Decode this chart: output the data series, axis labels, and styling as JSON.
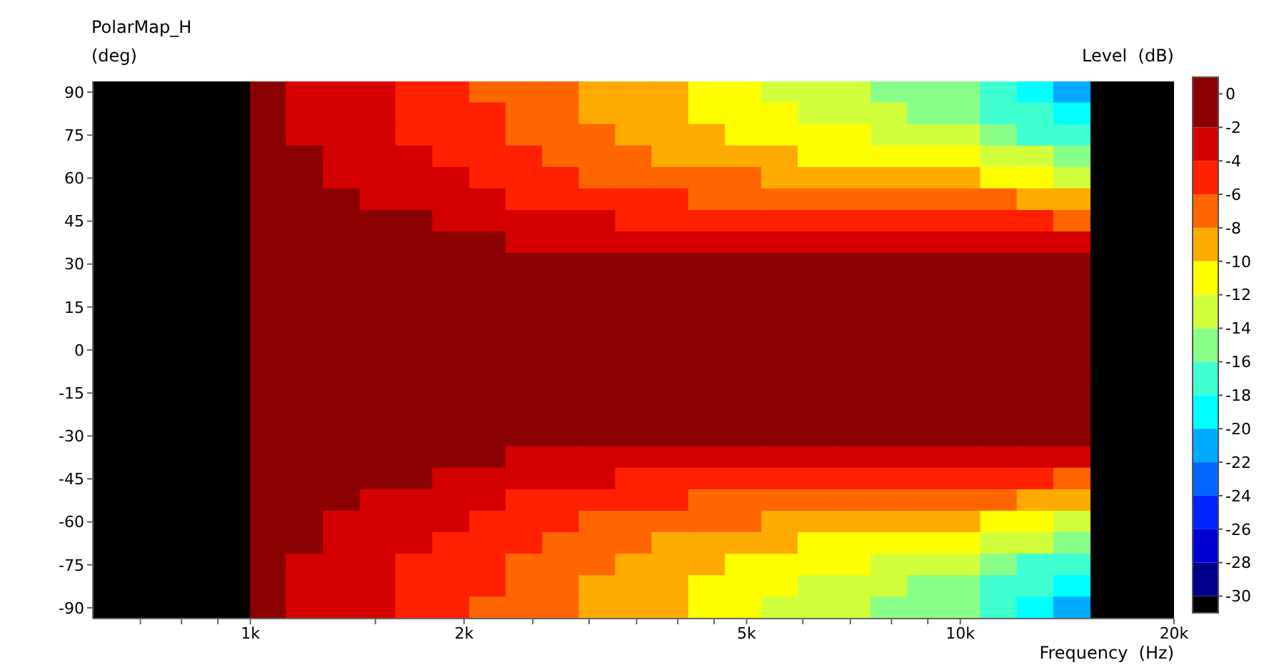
{
  "chart_data": {
    "type": "heatmap",
    "title": "PolarMap_H",
    "ylabel": "(deg)",
    "xlabel": "Frequency  (Hz)",
    "clabel": "Level  (dB)",
    "x": [
      1060,
      1190,
      1350,
      1510,
      1700,
      1920,
      2160,
      2430,
      2740,
      3080,
      3470,
      3900,
      4400,
      4950,
      5570,
      6270,
      7060,
      7940,
      8940,
      10070,
      11330,
      12760,
      14360
    ],
    "xlim": [
      600,
      20000
    ],
    "log": "x",
    "xticks": [
      {
        "value": 700,
        "label": null
      },
      {
        "value": 800,
        "label": null
      },
      {
        "value": 900,
        "label": null
      },
      {
        "value": 1000,
        "label": "1k"
      },
      {
        "value": 1500,
        "label": null
      },
      {
        "value": 2000,
        "label": "2k"
      },
      {
        "value": 2500,
        "label": null
      },
      {
        "value": 3000,
        "label": null
      },
      {
        "value": 3500,
        "label": null
      },
      {
        "value": 4000,
        "label": null
      },
      {
        "value": 4500,
        "label": null
      },
      {
        "value": 5000,
        "label": "5k"
      },
      {
        "value": 6000,
        "label": null
      },
      {
        "value": 7000,
        "label": null
      },
      {
        "value": 8000,
        "label": null
      },
      {
        "value": 9000,
        "label": null
      },
      {
        "value": 10000,
        "label": "10k"
      },
      {
        "value": 20000,
        "label": "20k"
      }
    ],
    "y_categories": [
      "90",
      null,
      "75",
      null,
      "60",
      null,
      "45",
      null,
      "30",
      null,
      "15",
      null,
      "0",
      null,
      "-15",
      null,
      "-30",
      null,
      "-45",
      null,
      "-60",
      null,
      "-75",
      null,
      "-90"
    ],
    "cells": [
      [
        -1,
        -3,
        -3,
        -3,
        -5,
        -5,
        -7,
        -7,
        -7,
        -9,
        -9,
        -9,
        -11,
        -11,
        -13,
        -13,
        -13,
        -15,
        -15,
        -15,
        -17,
        -19,
        -21
      ],
      [
        -1,
        -3,
        -3,
        -3,
        -5,
        -5,
        -5,
        -7,
        -7,
        -9,
        -9,
        -9,
        -11,
        -11,
        -11,
        -13,
        -13,
        -13,
        -15,
        -15,
        -17,
        -17,
        -19
      ],
      [
        -1,
        -3,
        -3,
        -3,
        -5,
        -5,
        -5,
        -7,
        -7,
        -7,
        -9,
        -9,
        -9,
        -11,
        -11,
        -11,
        -11,
        -13,
        -13,
        -13,
        -15,
        -17,
        -17
      ],
      [
        -1,
        -1,
        -3,
        -3,
        -3,
        -5,
        -5,
        -5,
        -7,
        -7,
        -7,
        -9,
        -9,
        -9,
        -9,
        -11,
        -11,
        -11,
        -11,
        -11,
        -13,
        -13,
        -15
      ],
      [
        -1,
        -1,
        -3,
        -3,
        -3,
        -3,
        -5,
        -5,
        -5,
        -7,
        -7,
        -7,
        -7,
        -7,
        -9,
        -9,
        -9,
        -9,
        -9,
        -9,
        -11,
        -11,
        -13
      ],
      [
        -1,
        -1,
        -1,
        -3,
        -3,
        -3,
        -3,
        -5,
        -5,
        -5,
        -5,
        -5,
        -7,
        -7,
        -7,
        -7,
        -7,
        -7,
        -7,
        -7,
        -7,
        -9,
        -9
      ],
      [
        -1,
        -1,
        -1,
        -1,
        -1,
        -3,
        -3,
        -3,
        -3,
        -3,
        -5,
        -5,
        -5,
        -5,
        -5,
        -5,
        -5,
        -5,
        -5,
        -5,
        -5,
        -5,
        -7
      ],
      [
        -1,
        -1,
        -1,
        -1,
        -1,
        -1,
        -1,
        -3,
        -3,
        -3,
        -3,
        -3,
        -3,
        -3,
        -3,
        -3,
        -3,
        -3,
        -3,
        -3,
        -3,
        -3,
        -3
      ],
      [
        -1,
        -1,
        -1,
        -1,
        -1,
        -1,
        -1,
        -1,
        -1,
        -1,
        -1,
        -1,
        -1,
        -1,
        -1,
        -1,
        -1,
        -1,
        -1,
        -1,
        -1,
        -1,
        -1
      ],
      [
        -1,
        -1,
        -1,
        -1,
        -1,
        -1,
        -1,
        -1,
        -1,
        -1,
        -1,
        -1,
        -1,
        -1,
        -1,
        -1,
        -1,
        -1,
        -1,
        -1,
        -1,
        -1,
        -1
      ],
      [
        -1,
        -1,
        -1,
        -1,
        -1,
        -1,
        -1,
        -1,
        -1,
        -1,
        -1,
        -1,
        -1,
        -1,
        -1,
        -1,
        -1,
        -1,
        -1,
        -1,
        -1,
        -1,
        -1
      ],
      [
        -1,
        -1,
        -1,
        -1,
        -1,
        -1,
        -1,
        -1,
        -1,
        -1,
        -1,
        -1,
        -1,
        -1,
        -1,
        -1,
        -1,
        -1,
        -1,
        -1,
        -1,
        -1,
        -1
      ],
      [
        -1,
        -1,
        -1,
        -1,
        -1,
        -1,
        -1,
        -1,
        -1,
        -1,
        -1,
        -1,
        -1,
        -1,
        -1,
        -1,
        -1,
        -1,
        -1,
        -1,
        -1,
        -1,
        -1
      ],
      [
        -1,
        -1,
        -1,
        -1,
        -1,
        -1,
        -1,
        -1,
        -1,
        -1,
        -1,
        -1,
        -1,
        -1,
        -1,
        -1,
        -1,
        -1,
        -1,
        -1,
        -1,
        -1,
        -1
      ],
      [
        -1,
        -1,
        -1,
        -1,
        -1,
        -1,
        -1,
        -1,
        -1,
        -1,
        -1,
        -1,
        -1,
        -1,
        -1,
        -1,
        -1,
        -1,
        -1,
        -1,
        -1,
        -1,
        -1
      ],
      [
        -1,
        -1,
        -1,
        -1,
        -1,
        -1,
        -1,
        -1,
        -1,
        -1,
        -1,
        -1,
        -1,
        -1,
        -1,
        -1,
        -1,
        -1,
        -1,
        -1,
        -1,
        -1,
        -1
      ],
      [
        -1,
        -1,
        -1,
        -1,
        -1,
        -1,
        -1,
        -1,
        -1,
        -1,
        -1,
        -1,
        -1,
        -1,
        -1,
        -1,
        -1,
        -1,
        -1,
        -1,
        -1,
        -1,
        -1
      ],
      [
        -1,
        -1,
        -1,
        -1,
        -1,
        -1,
        -1,
        -3,
        -3,
        -3,
        -3,
        -3,
        -3,
        -3,
        -3,
        -3,
        -3,
        -3,
        -3,
        -3,
        -3,
        -3,
        -3
      ],
      [
        -1,
        -1,
        -1,
        -1,
        -1,
        -3,
        -3,
        -3,
        -3,
        -3,
        -5,
        -5,
        -5,
        -5,
        -5,
        -5,
        -5,
        -5,
        -5,
        -5,
        -5,
        -5,
        -7
      ],
      [
        -1,
        -1,
        -1,
        -3,
        -3,
        -3,
        -3,
        -5,
        -5,
        -5,
        -5,
        -5,
        -7,
        -7,
        -7,
        -7,
        -7,
        -7,
        -7,
        -7,
        -7,
        -9,
        -9
      ],
      [
        -1,
        -1,
        -3,
        -3,
        -3,
        -3,
        -5,
        -5,
        -5,
        -7,
        -7,
        -7,
        -7,
        -7,
        -9,
        -9,
        -9,
        -9,
        -9,
        -9,
        -11,
        -11,
        -13
      ],
      [
        -1,
        -1,
        -3,
        -3,
        -3,
        -5,
        -5,
        -5,
        -7,
        -7,
        -7,
        -9,
        -9,
        -9,
        -9,
        -11,
        -11,
        -11,
        -11,
        -11,
        -13,
        -13,
        -15
      ],
      [
        -1,
        -3,
        -3,
        -3,
        -5,
        -5,
        -5,
        -7,
        -7,
        -7,
        -9,
        -9,
        -9,
        -11,
        -11,
        -11,
        -11,
        -13,
        -13,
        -13,
        -15,
        -17,
        -17
      ],
      [
        -1,
        -3,
        -3,
        -3,
        -5,
        -5,
        -5,
        -7,
        -7,
        -9,
        -9,
        -9,
        -11,
        -11,
        -11,
        -13,
        -13,
        -13,
        -15,
        -15,
        -17,
        -17,
        -19
      ],
      [
        -1,
        -3,
        -3,
        -3,
        -5,
        -5,
        -7,
        -7,
        -7,
        -9,
        -9,
        -9,
        -11,
        -11,
        -13,
        -13,
        -13,
        -15,
        -15,
        -15,
        -17,
        -19,
        -21
      ]
    ],
    "clim": [
      -31,
      1
    ],
    "cticks": [
      0,
      -2,
      -4,
      -6,
      -8,
      -10,
      -12,
      -14,
      -16,
      -18,
      -20,
      -22,
      -24,
      -26,
      -28,
      -30
    ],
    "colors": [
      "#8b0000",
      "#d40000",
      "#ff2000",
      "#ff6600",
      "#ffaa00",
      "#ffff00",
      "#d2ff3c",
      "#88ff88",
      "#40ffd0",
      "#00ffff",
      "#00aaff",
      "#0066ff",
      "#0022ff",
      "#0000d4",
      "#00008b",
      "#000000"
    ]
  }
}
